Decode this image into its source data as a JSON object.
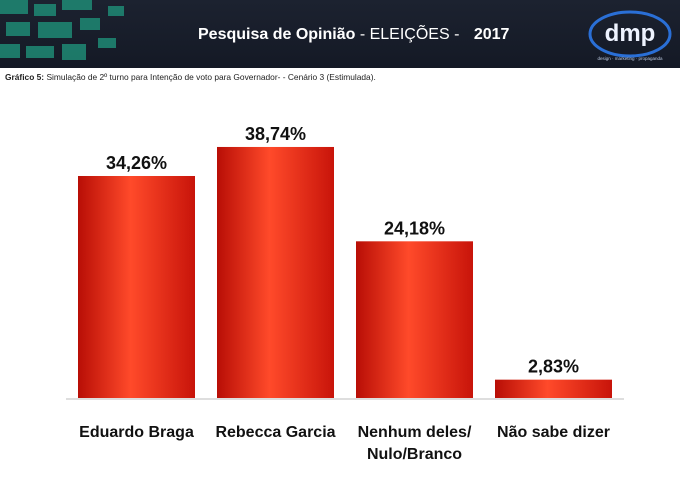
{
  "header": {
    "title_bold": "Pesquisa de Opinião",
    "title_rest": "- ELEIÇÕES -",
    "year": "2017",
    "logo_text": "dmp",
    "logo_tagline": "design · marketing · propaganda",
    "bg_color": "#161b27",
    "accent_color": "#1f8a74"
  },
  "subtitle": {
    "label": "Gráfico 5:",
    "text": "Simulação de 2º turno para Intenção de voto para Governador- - Cenário 3 (Estimulada)."
  },
  "chart_data": {
    "type": "bar",
    "title": "",
    "xlabel": "",
    "ylabel": "",
    "ylim": [
      0,
      40
    ],
    "grid": false,
    "categories": [
      [
        "Eduardo Braga"
      ],
      [
        "Rebecca Garcia"
      ],
      [
        "Nenhum deles/",
        "Nulo/Branco"
      ],
      [
        "Não sabe dizer"
      ]
    ],
    "values": [
      34.26,
      38.74,
      24.18,
      2.83
    ],
    "value_labels": [
      "34,26%",
      "38,74%",
      "24,18%",
      "2,83%"
    ],
    "bar_color": "#e8160c",
    "bar_highlight": "#ff5a3a"
  }
}
